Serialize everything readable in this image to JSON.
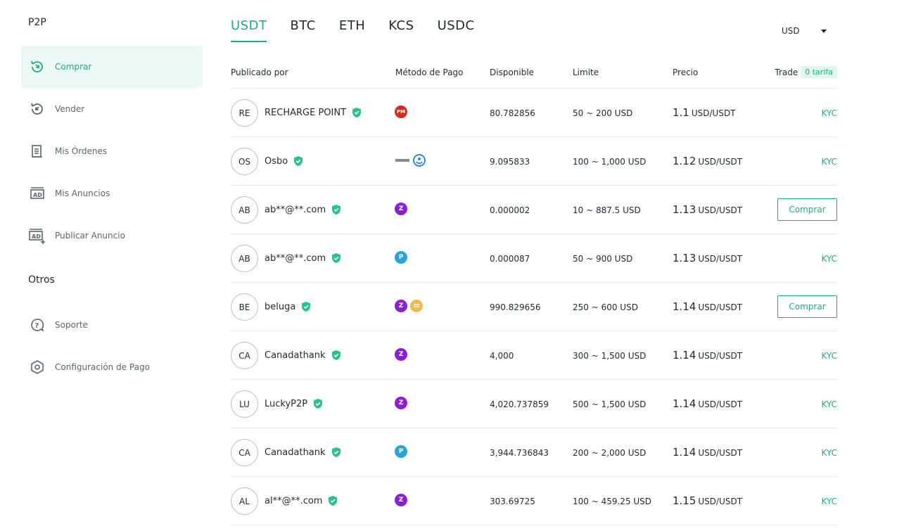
{
  "sidebar": {
    "section_p2p": "P2P",
    "section_otros": "Otros",
    "items": [
      {
        "label": "Comprar",
        "icon": "buy-icon",
        "active": true
      },
      {
        "label": "Vender",
        "icon": "sell-icon"
      },
      {
        "label": "Mis Órdenes",
        "icon": "orders-icon"
      },
      {
        "label": "Mis Anuncios",
        "icon": "ads-icon"
      },
      {
        "label": "Publicar Anuncio",
        "icon": "post-ad-icon"
      }
    ],
    "other_items": [
      {
        "label": "Soporte",
        "icon": "support-icon"
      },
      {
        "label": "Configuración de Pago",
        "icon": "payment-settings-icon"
      }
    ]
  },
  "tabs": [
    "USDT",
    "BTC",
    "ETH",
    "KCS",
    "USDC"
  ],
  "active_tab": "USDT",
  "currency": "USD",
  "table": {
    "headers": {
      "publisher": "Publicado por",
      "payment": "Método de Pago",
      "available": "Disponible",
      "limit": "Limite",
      "price": "Precio",
      "trade": "Trade",
      "fee": "0 tarifa"
    },
    "rows": [
      {
        "initials": "RE",
        "name": "RECHARGE POINT",
        "payments": [
          "perfect-money-icon"
        ],
        "available": "80.782856",
        "limit": "50 ~ 200 USD",
        "price": "1.1",
        "unit": "USD/USDT",
        "action": "KYC"
      },
      {
        "initials": "OS",
        "name": "Osbo",
        "payments": [
          "bank-transfer-icon",
          "skrill-icon"
        ],
        "available": "9.095833",
        "limit": "100 ~ 1,000 USD",
        "price": "1.12",
        "unit": "USD/USDT",
        "action": "KYC"
      },
      {
        "initials": "AB",
        "name": "ab**@**.com",
        "payments": [
          "zelle-icon"
        ],
        "available": "0.000002",
        "limit": "10 ~ 887.5 USD",
        "price": "1.13",
        "unit": "USD/USDT",
        "action": "Comprar"
      },
      {
        "initials": "AB",
        "name": "ab**@**.com",
        "payments": [
          "paypal-icon"
        ],
        "available": "0.000087",
        "limit": "50 ~ 900 USD",
        "price": "1.13",
        "unit": "USD/USDT",
        "action": "KYC"
      },
      {
        "initials": "BE",
        "name": "beluga",
        "payments": [
          "zelle-icon",
          "bank-card-icon"
        ],
        "available": "990.829656",
        "limit": "250 ~ 600 USD",
        "price": "1.14",
        "unit": "USD/USDT",
        "action": "Comprar"
      },
      {
        "initials": "CA",
        "name": "Canadathank",
        "payments": [
          "zelle-icon"
        ],
        "available": "4,000",
        "limit": "300 ~ 1,500 USD",
        "price": "1.14",
        "unit": "USD/USDT",
        "action": "KYC"
      },
      {
        "initials": "LU",
        "name": "LuckyP2P",
        "payments": [
          "zelle-icon"
        ],
        "available": "4,020.737859",
        "limit": "500 ~ 1,500 USD",
        "price": "1.14",
        "unit": "USD/USDT",
        "action": "KYC"
      },
      {
        "initials": "CA",
        "name": "Canadathank",
        "payments": [
          "paypal-icon"
        ],
        "available": "3,944.736843",
        "limit": "200 ~ 2,000 USD",
        "price": "1.14",
        "unit": "USD/USDT",
        "action": "KYC"
      },
      {
        "initials": "AL",
        "name": "al**@**.com",
        "payments": [
          "zelle-icon"
        ],
        "available": "303.69725",
        "limit": "100 ~ 459.25 USD",
        "price": "1.15",
        "unit": "USD/USDT",
        "action": "KYC"
      }
    ]
  },
  "colors": {
    "accent": "#1eaa86",
    "zelle": "#8a1fd6",
    "paypal": "#2aa3d5",
    "perfect_money": "#e0281f",
    "bank_card": "#f2b84b"
  }
}
